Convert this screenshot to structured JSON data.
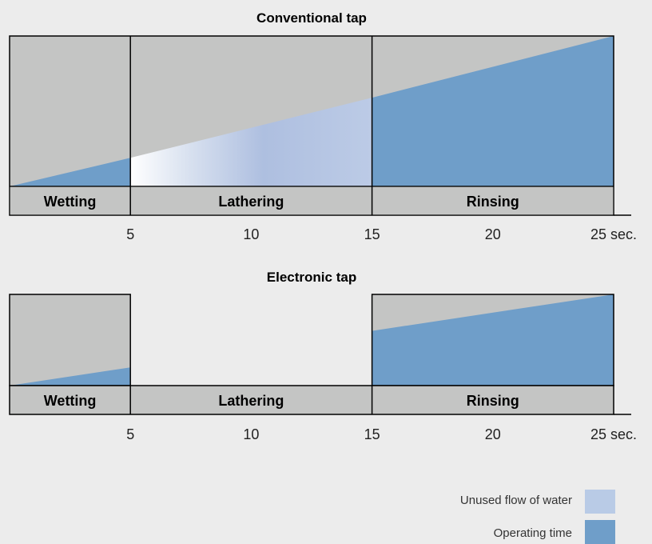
{
  "colors": {
    "background": "#ececec",
    "panel_gray": "#c4c5c4",
    "operating_time": "#6f9ec9",
    "unused_flow": "#b9cbe6",
    "outline": "#000000"
  },
  "chart_data": [
    {
      "type": "area",
      "title": "Conventional tap",
      "xlim": [
        0,
        25
      ],
      "x_unit": "sec.",
      "ticks": [
        5,
        10,
        15,
        20,
        25
      ],
      "tick_labels": [
        "5",
        "10",
        "15",
        "20",
        "25 sec."
      ],
      "phases": [
        {
          "label": "Wetting",
          "start": 0,
          "end": 5
        },
        {
          "label": "Lathering",
          "start": 5,
          "end": 15
        },
        {
          "label": "Rinsing",
          "start": 15,
          "end": 25
        }
      ],
      "series": [
        {
          "name": "Operating time",
          "segments": [
            {
              "x": [
                0,
                5
              ],
              "y": [
                0,
                0.19
              ]
            },
            {
              "x": [
                15,
                25
              ],
              "y": [
                0.59,
                1.0
              ]
            }
          ]
        },
        {
          "name": "Unused flow of water",
          "segments": [
            {
              "x": [
                5,
                15
              ],
              "y": [
                0.19,
                0.59
              ]
            }
          ]
        }
      ]
    },
    {
      "type": "area",
      "title": "Electronic tap",
      "xlim": [
        0,
        25
      ],
      "x_unit": "sec.",
      "ticks": [
        5,
        10,
        15,
        20,
        25
      ],
      "tick_labels": [
        "5",
        "10",
        "15",
        "20",
        "25 sec."
      ],
      "phases": [
        {
          "label": "Wetting",
          "start": 0,
          "end": 5
        },
        {
          "label": "Lathering",
          "start": 5,
          "end": 15
        },
        {
          "label": "Rinsing",
          "start": 15,
          "end": 25
        }
      ],
      "series": [
        {
          "name": "Operating time",
          "segments": [
            {
              "x": [
                0,
                5
              ],
              "y": [
                0,
                0.2
              ]
            },
            {
              "x": [
                15,
                25
              ],
              "y": [
                0.6,
                1.0
              ]
            }
          ]
        }
      ]
    }
  ],
  "legend": [
    {
      "label": "Unused flow of water",
      "color": "#b9cbe6"
    },
    {
      "label": "Operating time",
      "color": "#6f9ec9"
    }
  ]
}
